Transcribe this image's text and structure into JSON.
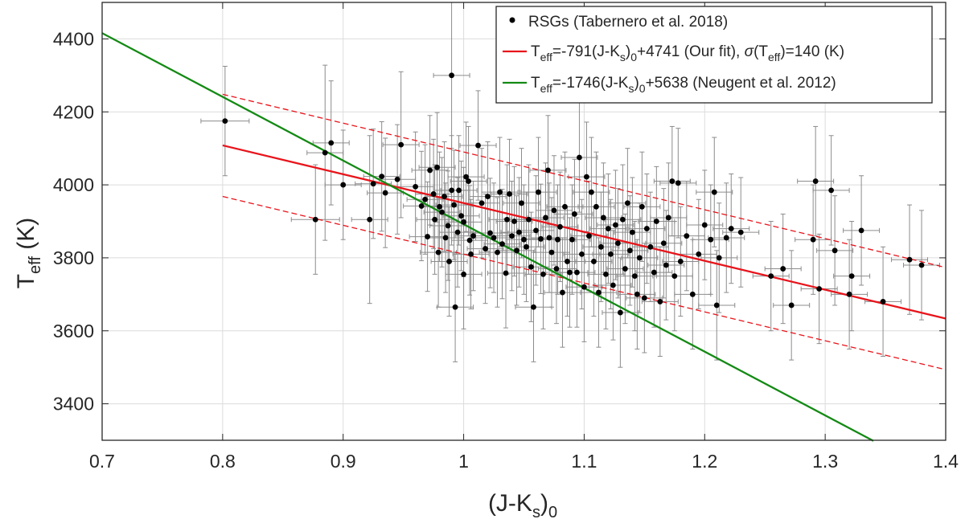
{
  "chart_data": {
    "type": "scatter",
    "xlabel": {
      "main": "(J-K",
      "sub_s": "s",
      "close": ")",
      "sub_0": "0"
    },
    "ylabel": {
      "main": "T",
      "sub": "eff",
      "unit": " (K)"
    },
    "xlim": [
      0.7,
      1.4
    ],
    "ylim": [
      3300,
      4500
    ],
    "x_ticks": [
      0.7,
      0.8,
      0.9,
      1.0,
      1.1,
      1.2,
      1.3,
      1.4
    ],
    "x_tick_labels": [
      "0.7",
      "0.8",
      "0.9",
      "1",
      "1.1",
      "1.2",
      "1.3",
      "1.4"
    ],
    "y_ticks": [
      3400,
      3600,
      3800,
      4000,
      4200,
      4400
    ],
    "y_tick_labels": [
      "3400",
      "3600",
      "3800",
      "4000",
      "4200",
      "4400"
    ],
    "grid": true,
    "legend_position": "top-right",
    "colors": {
      "points": "#000000",
      "errorbars": "#8c8c8c",
      "fit": "#e8141b",
      "neugent": "#138a14",
      "grid": "#dcdcdc",
      "axes": "#262626"
    },
    "legend": {
      "rsg": "RSGs (Tabernero et al. 2018)",
      "fit": {
        "t": "T",
        "eff": "eff",
        "a": "=-791(J-K",
        "s": "s",
        "b": ")",
        "zero": "0",
        "c": "+4741 (Our fit), ",
        "sigma": "σ",
        "d": "(T",
        "eff2": "eff",
        "e": ")=140 (K)"
      },
      "neugent": {
        "t": "T",
        "eff": "eff",
        "a": "=-1746(J-K",
        "s": "s",
        "b": ")",
        "zero": "0",
        "c": "+5638 (Neugent et al. 2012)"
      }
    },
    "fit_line": {
      "slope": -791,
      "intercept": 4741,
      "x_range": [
        0.8,
        1.4
      ],
      "sigma": 140
    },
    "neugent_line": {
      "slope": -1746,
      "intercept": 5638,
      "x_range": [
        0.7,
        1.34
      ]
    },
    "series": [
      {
        "name": "RSGs (Tabernero et al. 2018)",
        "points": [
          [
            0.802,
            4175,
            0.02,
            150
          ],
          [
            0.877,
            3905,
            0.02,
            150
          ],
          [
            0.885,
            4088,
            0.015,
            240
          ],
          [
            0.89,
            4115,
            0.015,
            170
          ],
          [
            0.9,
            4000,
            0.015,
            150
          ],
          [
            0.922,
            3905,
            0.015,
            230
          ],
          [
            0.925,
            4003,
            0.015,
            150
          ],
          [
            0.932,
            4023,
            0.015,
            150
          ],
          [
            0.935,
            3978,
            0.015,
            150
          ],
          [
            0.945,
            4015,
            0.015,
            150
          ],
          [
            0.948,
            4110,
            0.015,
            200
          ],
          [
            0.96,
            3995,
            0.015,
            150
          ],
          [
            0.965,
            3942,
            0.015,
            150
          ],
          [
            0.968,
            3960,
            0.015,
            150
          ],
          [
            0.97,
            3858,
            0.015,
            150
          ],
          [
            0.972,
            4040,
            0.015,
            150
          ],
          [
            0.975,
            3975,
            0.015,
            150
          ],
          [
            0.976,
            3905,
            0.015,
            150
          ],
          [
            0.978,
            4048,
            0.015,
            150
          ],
          [
            0.979,
            3815,
            0.015,
            150
          ],
          [
            0.98,
            3940,
            0.015,
            150
          ],
          [
            0.982,
            3925,
            0.015,
            150
          ],
          [
            0.984,
            3968,
            0.015,
            150
          ],
          [
            0.985,
            3855,
            0.015,
            150
          ],
          [
            0.987,
            3888,
            0.015,
            150
          ],
          [
            0.988,
            3790,
            0.015,
            150
          ],
          [
            0.99,
            4300,
            0.015,
            200
          ],
          [
            0.99,
            3985,
            0.015,
            150
          ],
          [
            0.992,
            3945,
            0.015,
            150
          ],
          [
            0.993,
            3665,
            0.015,
            150
          ],
          [
            0.995,
            3870,
            0.015,
            150
          ],
          [
            0.996,
            3985,
            0.015,
            150
          ],
          [
            0.998,
            3915,
            0.015,
            150
          ],
          [
            1.0,
            3755,
            0.015,
            150
          ],
          [
            1.0,
            3898,
            0.015,
            150
          ],
          [
            1.002,
            4022,
            0.015,
            150
          ],
          [
            1.004,
            4010,
            0.015,
            150
          ],
          [
            1.005,
            3848,
            0.015,
            150
          ],
          [
            1.006,
            3810,
            0.015,
            150
          ],
          [
            1.008,
            3860,
            0.015,
            150
          ],
          [
            1.012,
            4108,
            0.015,
            150
          ],
          [
            1.015,
            3950,
            0.015,
            150
          ],
          [
            1.018,
            3825,
            0.015,
            150
          ],
          [
            1.02,
            3968,
            0.015,
            150
          ],
          [
            1.022,
            3868,
            0.015,
            150
          ],
          [
            1.025,
            3855,
            0.015,
            150
          ],
          [
            1.028,
            3815,
            0.015,
            150
          ],
          [
            1.03,
            3980,
            0.015,
            150
          ],
          [
            1.032,
            3838,
            0.015,
            150
          ],
          [
            1.035,
            3758,
            0.015,
            150
          ],
          [
            1.036,
            3905,
            0.015,
            150
          ],
          [
            1.038,
            3975,
            0.015,
            150
          ],
          [
            1.04,
            3860,
            0.015,
            150
          ],
          [
            1.042,
            3900,
            0.015,
            150
          ],
          [
            1.044,
            3820,
            0.015,
            150
          ],
          [
            1.046,
            3870,
            0.015,
            150
          ],
          [
            1.048,
            3950,
            0.015,
            150
          ],
          [
            1.05,
            3850,
            0.015,
            150
          ],
          [
            1.052,
            3830,
            0.015,
            150
          ],
          [
            1.054,
            3905,
            0.015,
            150
          ],
          [
            1.056,
            3775,
            0.015,
            150
          ],
          [
            1.058,
            3665,
            0.015,
            150
          ],
          [
            1.06,
            3875,
            0.015,
            150
          ],
          [
            1.062,
            3980,
            0.015,
            150
          ],
          [
            1.064,
            3852,
            0.015,
            150
          ],
          [
            1.066,
            3755,
            0.015,
            150
          ],
          [
            1.068,
            3910,
            0.015,
            150
          ],
          [
            1.07,
            4040,
            0.015,
            150
          ],
          [
            1.071,
            3855,
            0.015,
            150
          ],
          [
            1.073,
            3815,
            0.015,
            150
          ],
          [
            1.075,
            3930,
            0.015,
            150
          ],
          [
            1.077,
            3770,
            0.015,
            150
          ],
          [
            1.078,
            3850,
            0.015,
            150
          ],
          [
            1.08,
            3885,
            0.015,
            150
          ],
          [
            1.082,
            3705,
            0.015,
            150
          ],
          [
            1.084,
            3940,
            0.015,
            150
          ],
          [
            1.086,
            3790,
            0.015,
            150
          ],
          [
            1.088,
            3760,
            0.015,
            150
          ],
          [
            1.09,
            3850,
            0.015,
            150
          ],
          [
            1.092,
            3920,
            0.015,
            150
          ],
          [
            1.094,
            3760,
            0.015,
            150
          ],
          [
            1.096,
            4075,
            0.015,
            150
          ],
          [
            1.098,
            3810,
            0.015,
            150
          ],
          [
            1.1,
            3720,
            0.015,
            150
          ],
          [
            1.102,
            4022,
            0.015,
            150
          ],
          [
            1.104,
            3860,
            0.015,
            150
          ],
          [
            1.106,
            3980,
            0.015,
            150
          ],
          [
            1.108,
            3790,
            0.015,
            150
          ],
          [
            1.11,
            3940,
            0.015,
            150
          ],
          [
            1.112,
            3705,
            0.015,
            150
          ],
          [
            1.114,
            3830,
            0.015,
            150
          ],
          [
            1.116,
            3910,
            0.015,
            150
          ],
          [
            1.118,
            3755,
            0.015,
            150
          ],
          [
            1.12,
            3880,
            0.015,
            150
          ],
          [
            1.122,
            3810,
            0.015,
            150
          ],
          [
            1.124,
            3725,
            0.015,
            150
          ],
          [
            1.126,
            3890,
            0.015,
            150
          ],
          [
            1.128,
            3840,
            0.015,
            150
          ],
          [
            1.13,
            3650,
            0.015,
            150
          ],
          [
            1.132,
            3905,
            0.015,
            150
          ],
          [
            1.134,
            3770,
            0.015,
            150
          ],
          [
            1.136,
            3950,
            0.015,
            150
          ],
          [
            1.138,
            3820,
            0.015,
            150
          ],
          [
            1.14,
            3870,
            0.015,
            150
          ],
          [
            1.142,
            3750,
            0.015,
            150
          ],
          [
            1.144,
            3700,
            0.015,
            150
          ],
          [
            1.146,
            3800,
            0.015,
            150
          ],
          [
            1.148,
            3940,
            0.015,
            150
          ],
          [
            1.15,
            3690,
            0.015,
            150
          ],
          [
            1.152,
            3880,
            0.015,
            150
          ],
          [
            1.155,
            3830,
            0.015,
            150
          ],
          [
            1.158,
            3760,
            0.015,
            150
          ],
          [
            1.16,
            3900,
            0.015,
            150
          ],
          [
            1.163,
            3680,
            0.015,
            150
          ],
          [
            1.166,
            3840,
            0.015,
            150
          ],
          [
            1.168,
            3780,
            0.015,
            150
          ],
          [
            1.17,
            3910,
            0.015,
            150
          ],
          [
            1.173,
            4010,
            0.015,
            150
          ],
          [
            1.175,
            3750,
            0.015,
            150
          ],
          [
            1.178,
            4005,
            0.015,
            150
          ],
          [
            1.18,
            3790,
            0.015,
            150
          ],
          [
            1.185,
            3860,
            0.015,
            150
          ],
          [
            1.19,
            3700,
            0.015,
            150
          ],
          [
            1.195,
            3810,
            0.015,
            150
          ],
          [
            1.2,
            3890,
            0.015,
            150
          ],
          [
            1.205,
            3850,
            0.015,
            150
          ],
          [
            1.208,
            3980,
            0.015,
            150
          ],
          [
            1.21,
            3670,
            0.015,
            150
          ],
          [
            1.212,
            3800,
            0.015,
            150
          ],
          [
            1.218,
            3855,
            0.015,
            150
          ],
          [
            1.222,
            3880,
            0.015,
            150
          ],
          [
            1.23,
            3870,
            0.015,
            150
          ],
          [
            1.255,
            3750,
            0.015,
            150
          ],
          [
            1.265,
            3770,
            0.015,
            150
          ],
          [
            1.272,
            3670,
            0.015,
            150
          ],
          [
            1.29,
            3850,
            0.015,
            150
          ],
          [
            1.292,
            4010,
            0.015,
            150
          ],
          [
            1.295,
            3715,
            0.015,
            150
          ],
          [
            1.305,
            3985,
            0.015,
            150
          ],
          [
            1.308,
            3820,
            0.015,
            150
          ],
          [
            1.32,
            3700,
            0.015,
            150
          ],
          [
            1.322,
            3750,
            0.015,
            150
          ],
          [
            1.33,
            3875,
            0.015,
            150
          ],
          [
            1.348,
            3680,
            0.015,
            150
          ],
          [
            1.37,
            3795,
            0.015,
            150
          ],
          [
            1.38,
            3780,
            0.015,
            150
          ]
        ]
      }
    ]
  }
}
